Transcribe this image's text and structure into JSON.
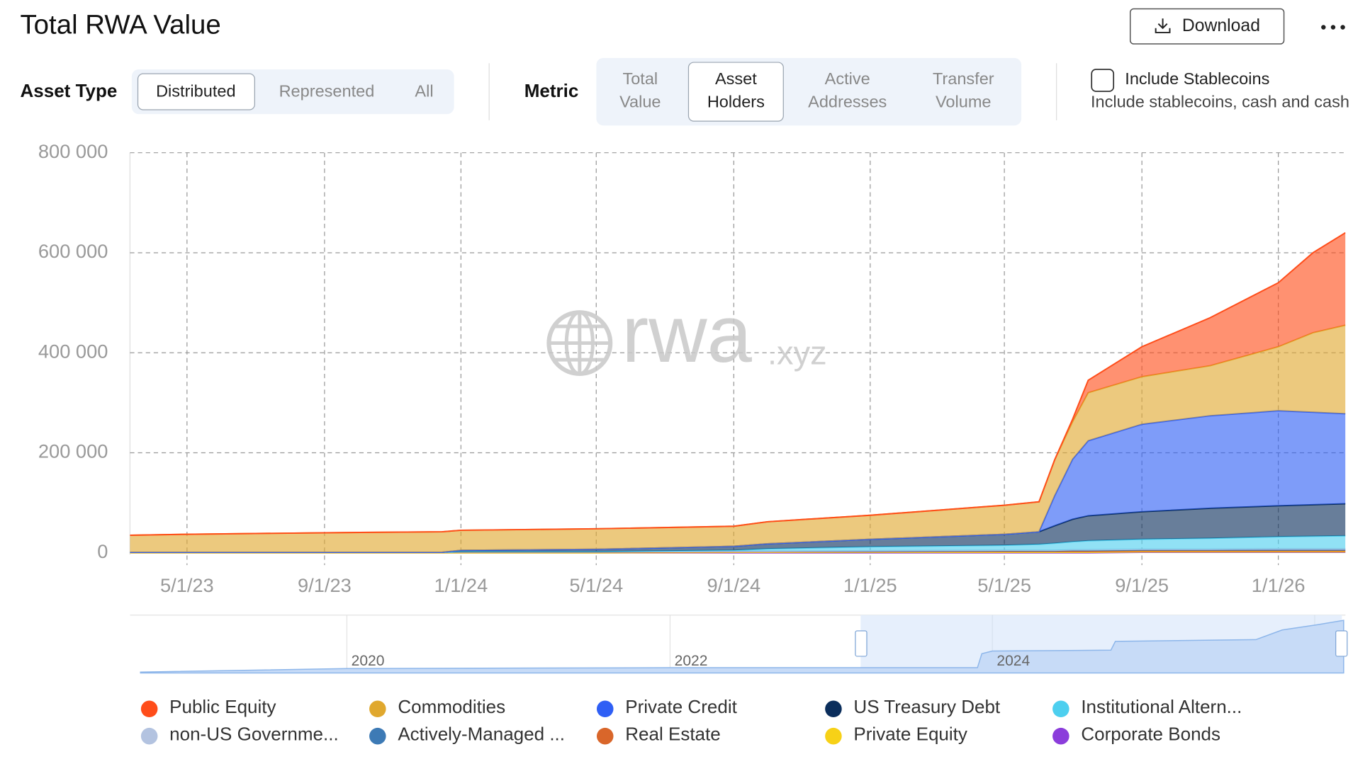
{
  "header": {
    "title": "Total RWA Value",
    "download": "Download"
  },
  "controls": {
    "asset_type": {
      "label": "Asset Type",
      "options": [
        "Distributed",
        "Represented",
        "All"
      ],
      "selected": 0
    },
    "metric": {
      "label": "Metric",
      "options": [
        [
          "Total",
          "Value"
        ],
        [
          "Asset",
          "Holders"
        ],
        [
          "Active",
          "Addresses"
        ],
        [
          "Transfer",
          "Volume"
        ]
      ],
      "selected": 1
    },
    "stablecoins": {
      "label": "Include Stablecoins",
      "description": "Include stablecoins, cash and cash"
    }
  },
  "watermark": {
    "text": "rwa",
    "suffix": ".xyz"
  },
  "navigator": {
    "labels": [
      "2020",
      "2022",
      "2024"
    ]
  },
  "chart_data": {
    "type": "stacked_area",
    "x": [
      "3/11/23",
      "5/1/23",
      "9/1/23",
      "12/15/23",
      "1/1/24",
      "5/1/24",
      "9/1/24",
      "10/1/24",
      "1/1/25",
      "5/1/25",
      "6/1/25",
      "6/15/25",
      "7/1/25",
      "7/15/25",
      "9/1/25",
      "11/1/25",
      "1/1/26",
      "2/1/26",
      "3/2/26"
    ],
    "xlim": [
      "3/11/23",
      "3/2/26"
    ],
    "xticks": [
      "5/1/23",
      "9/1/23",
      "1/1/24",
      "5/1/24",
      "9/1/24",
      "1/1/25",
      "5/1/25",
      "9/1/25",
      "1/1/26"
    ],
    "ylim": [
      0,
      800000
    ],
    "yticks": [
      {
        "value": 0,
        "label": "0"
      },
      {
        "value": 200000,
        "label": "200 000"
      },
      {
        "value": 400000,
        "label": "400 000"
      },
      {
        "value": 600000,
        "label": "600 000"
      },
      {
        "value": 800000,
        "label": "800 000"
      }
    ],
    "grid": true,
    "series": [
      {
        "name": "Public Equity",
        "color": "#ff4d1a",
        "values": [
          0,
          0,
          0,
          0,
          0,
          0,
          0,
          0,
          0,
          0,
          0,
          0,
          5000,
          25000,
          60000,
          96000,
          128000,
          160000,
          185000
        ]
      },
      {
        "name": "Commodities",
        "color": "#e0a82e",
        "values": [
          34000,
          36000,
          39000,
          41000,
          40000,
          41000,
          40000,
          44000,
          48000,
          58000,
          60000,
          72000,
          75000,
          96000,
          95000,
          100000,
          128000,
          159000,
          177000
        ]
      },
      {
        "name": "Private Credit",
        "color": "#2f5ff5",
        "values": [
          0,
          0,
          0,
          0,
          0,
          0,
          0,
          0,
          0,
          0,
          0,
          60000,
          120000,
          150000,
          175000,
          185000,
          190000,
          185000,
          180000
        ]
      },
      {
        "name": "US Treasury Debt",
        "color": "#0b2e5c",
        "values": [
          0,
          0,
          0,
          0,
          3000,
          5000,
          8000,
          10000,
          15000,
          22000,
          25000,
          35000,
          45000,
          50000,
          55000,
          60000,
          62000,
          63000,
          64000
        ]
      },
      {
        "name": "Institutional Altern...",
        "color": "#4dcfef",
        "values": [
          0,
          0,
          0,
          0,
          0,
          0,
          2000,
          5000,
          8000,
          10000,
          12000,
          14000,
          16000,
          18000,
          20000,
          22000,
          24000,
          25000,
          26000
        ]
      },
      {
        "name": "non-US Governme...",
        "color": "#b3c3e0",
        "values": [
          0,
          0,
          0,
          0,
          0,
          0,
          0,
          0,
          1000,
          1000,
          1000,
          1000,
          1000,
          1000,
          1000,
          1000,
          2000,
          2000,
          2000
        ]
      },
      {
        "name": "Actively-Managed ...",
        "color": "#3d7ab5",
        "values": [
          0,
          0,
          0,
          0,
          1000,
          1000,
          1000,
          1000,
          1000,
          1000,
          1000,
          1000,
          2000,
          2000,
          2000,
          2000,
          2000,
          2000,
          2000
        ]
      },
      {
        "name": "Real Estate",
        "color": "#d9662a",
        "values": [
          1000,
          1000,
          1000,
          1000,
          1000,
          1000,
          1000,
          1000,
          1000,
          2000,
          2000,
          2000,
          2000,
          2000,
          2000,
          2000,
          2000,
          2000,
          2000
        ]
      },
      {
        "name": "Private Equity",
        "color": "#f7d117",
        "values": [
          0,
          0,
          0,
          0,
          0,
          0,
          1000,
          1000,
          1000,
          1000,
          1000,
          1000,
          1000,
          1000,
          1000,
          1000,
          1000,
          1000,
          1000
        ]
      },
      {
        "name": "Corporate Bonds",
        "color": "#8b3ddb",
        "values": [
          0,
          0,
          0,
          0,
          0,
          0,
          0,
          0,
          0,
          0,
          0,
          0,
          0,
          0,
          1000,
          1000,
          1000,
          1000,
          1000
        ]
      }
    ]
  }
}
